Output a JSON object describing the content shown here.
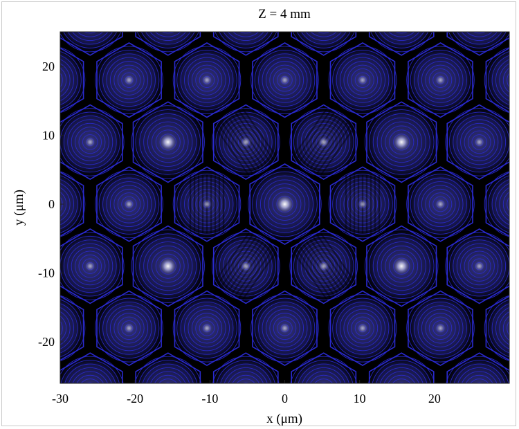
{
  "chart_data": {
    "type": "heatmap",
    "title": "Z = 4 mm",
    "xlabel": "x (μm)",
    "ylabel": "y (μm)",
    "xlim": [
      -30,
      30
    ],
    "ylim": [
      -26,
      25
    ],
    "x_ticks": [
      -30,
      -20,
      -10,
      0,
      10,
      20
    ],
    "y_ticks": [
      20,
      10,
      0,
      -10,
      -20
    ],
    "colors": {
      "background": "#000000",
      "contour": "#2a2ad0",
      "peak": "#ffffff",
      "fill": "#1c1c6a"
    },
    "lattice": {
      "period_x": 10.4,
      "period_y": 9.0,
      "row_offset_x": 5.2
    },
    "peaks": [
      {
        "x": 0,
        "y": 0,
        "brightness": 1.0,
        "ring_scale": 1.08,
        "modulation": "none"
      },
      {
        "x": 15.5,
        "y": 9,
        "brightness": 0.95,
        "ring_scale": 1.08,
        "modulation": "none"
      },
      {
        "x": -15.5,
        "y": 9,
        "brightness": 0.95,
        "ring_scale": 1.08,
        "modulation": "none"
      },
      {
        "x": 15.5,
        "y": -9,
        "brightness": 0.95,
        "ring_scale": 1.08,
        "modulation": "none"
      },
      {
        "x": -15.5,
        "y": -9,
        "brightness": 0.95,
        "ring_scale": 1.08,
        "modulation": "none"
      },
      {
        "x": 10.2,
        "y": 0,
        "brightness": 0.35,
        "ring_scale": 1.0,
        "modulation": "vertical"
      },
      {
        "x": -10.2,
        "y": 0,
        "brightness": 0.35,
        "ring_scale": 1.0,
        "modulation": "vertical"
      },
      {
        "x": 5.2,
        "y": 9,
        "brightness": 0.45,
        "ring_scale": 1.0,
        "modulation": "diag-right"
      },
      {
        "x": -5.2,
        "y": 9,
        "brightness": 0.45,
        "ring_scale": 1.0,
        "modulation": "diag-left"
      },
      {
        "x": 5.2,
        "y": -9,
        "brightness": 0.45,
        "ring_scale": 1.0,
        "modulation": "diag-left"
      },
      {
        "x": -5.2,
        "y": -9,
        "brightness": 0.45,
        "ring_scale": 1.0,
        "modulation": "diag-right"
      }
    ]
  }
}
